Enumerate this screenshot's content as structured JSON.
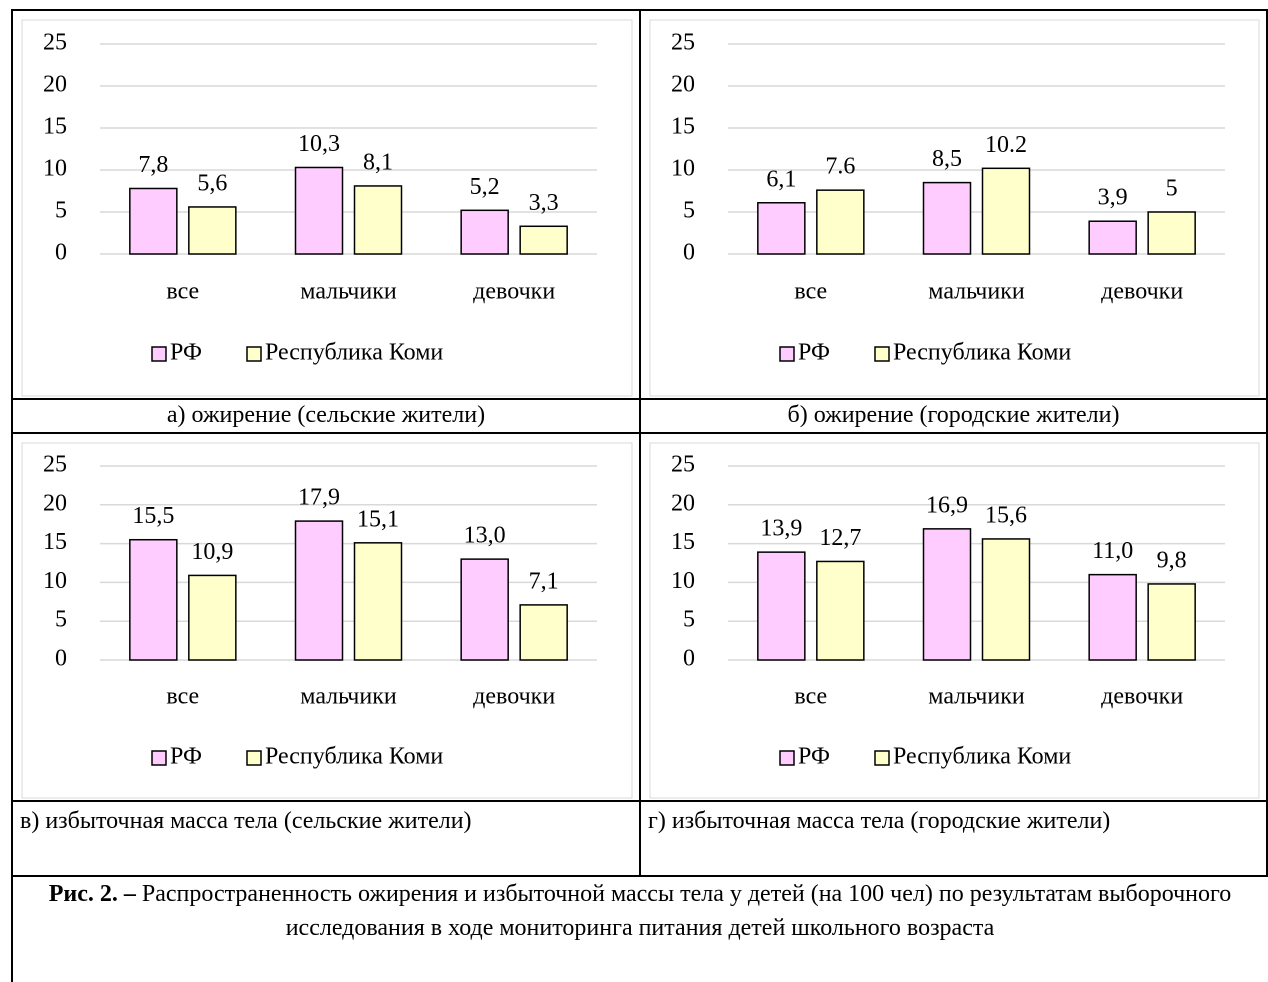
{
  "chart_data": [
    {
      "type": "bar",
      "categories": [
        "все",
        "мальчики",
        "девочки"
      ],
      "ylim": [
        0,
        25
      ],
      "yticks": [
        0,
        5,
        10,
        15,
        20,
        25
      ],
      "grid": true,
      "series": [
        {
          "name": "РФ",
          "color": "#ffccff",
          "values": [
            7.8,
            10.3,
            5.2
          ],
          "value_labels": [
            "7,8",
            "10,3",
            "5,2"
          ]
        },
        {
          "name": "Республика Коми",
          "color": "#ffffcc",
          "values": [
            5.6,
            8.1,
            3.3
          ],
          "value_labels": [
            "5,6",
            "8,1",
            "3,3"
          ]
        }
      ]
    },
    {
      "type": "bar",
      "categories": [
        "все",
        "мальчики",
        "девочки"
      ],
      "ylim": [
        0,
        25
      ],
      "yticks": [
        0,
        5,
        10,
        15,
        20,
        25
      ],
      "grid": true,
      "series": [
        {
          "name": "РФ",
          "color": "#ffccff",
          "values": [
            6.1,
            8.5,
            3.9
          ],
          "value_labels": [
            "6,1",
            "8,5",
            "3,9"
          ]
        },
        {
          "name": "Республика Коми",
          "color": "#ffffcc",
          "values": [
            7.6,
            10.2,
            5
          ]
        }
      ]
    },
    {
      "type": "bar",
      "categories": [
        "все",
        "мальчики",
        "девочки"
      ],
      "ylim": [
        0,
        25
      ],
      "yticks": [
        0,
        5,
        10,
        15,
        20,
        25
      ],
      "grid": true,
      "series": [
        {
          "name": "РФ",
          "color": "#ffccff",
          "values": [
            15.5,
            17.9,
            13.0
          ],
          "value_labels": [
            "15,5",
            "17,9",
            "13,0"
          ]
        },
        {
          "name": "Республика Коми",
          "color": "#ffffcc",
          "values": [
            10.9,
            15.1,
            7.1
          ],
          "value_labels": [
            "10,9",
            "15,1",
            "7,1"
          ]
        }
      ]
    },
    {
      "type": "bar",
      "categories": [
        "все",
        "мальчики",
        "девочки"
      ],
      "ylim": [
        0,
        25
      ],
      "yticks": [
        0,
        5,
        10,
        15,
        20,
        25
      ],
      "grid": true,
      "series": [
        {
          "name": "РФ",
          "color": "#ffccff",
          "values": [
            13.9,
            16.9,
            11.0
          ],
          "value_labels": [
            "13,9",
            "16,9",
            "11,0"
          ]
        },
        {
          "name": "Республика Коми",
          "color": "#ffffcc",
          "values": [
            12.7,
            15.6,
            9.8
          ],
          "value_labels": [
            "12,7",
            "15,6",
            "9,8"
          ]
        }
      ]
    }
  ],
  "captions": [
    "а) ожирение (сельские жители)",
    "б) ожирение (городские жители)",
    "в) избыточная масса тела (сельские жители)",
    "г) избыточная масса тела (городские жители)"
  ],
  "figure": {
    "label": "Рис. 2. –",
    "text": "Распространенность ожирения и избыточной массы тела у детей (на 100 чел) по результатам выборочного исследования в ходе мониторинга питания детей школьного возраста"
  }
}
